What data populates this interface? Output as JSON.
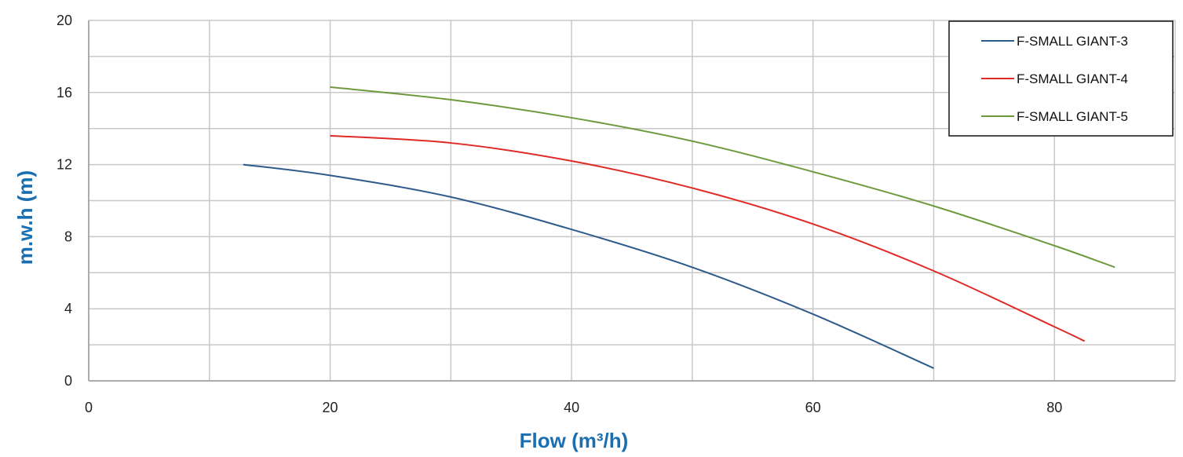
{
  "chart_data": {
    "type": "line",
    "xlabel": "Flow (m³/h)",
    "ylabel": "m.w.h (m)",
    "xlim": [
      0,
      90
    ],
    "ylim": [
      0,
      20
    ],
    "x_ticks": [
      0,
      20,
      40,
      60,
      80
    ],
    "y_ticks": [
      0,
      4,
      8,
      12,
      16,
      20
    ],
    "x_grid_step": 10,
    "y_grid_step": 2,
    "grid": true,
    "legend_position": "top-right",
    "series": [
      {
        "name": "F-SMALL GIANT-3",
        "color": "#2e5b8a",
        "x": [
          12.8,
          20,
          30,
          40,
          50,
          60,
          70
        ],
        "y": [
          12.0,
          11.4,
          10.2,
          8.4,
          6.3,
          3.7,
          0.7
        ]
      },
      {
        "name": "F-SMALL GIANT-4",
        "color": "#e02a26",
        "x": [
          20,
          30,
          40,
          50,
          60,
          70,
          80,
          82.5
        ],
        "y": [
          13.6,
          13.2,
          12.2,
          10.7,
          8.7,
          6.1,
          3.0,
          2.2
        ]
      },
      {
        "name": "F-SMALL GIANT-5",
        "color": "#6e9a3e",
        "x": [
          20,
          30,
          40,
          50,
          60,
          70,
          80,
          85
        ],
        "y": [
          16.3,
          15.6,
          14.6,
          13.3,
          11.6,
          9.7,
          7.5,
          6.3
        ]
      }
    ]
  }
}
